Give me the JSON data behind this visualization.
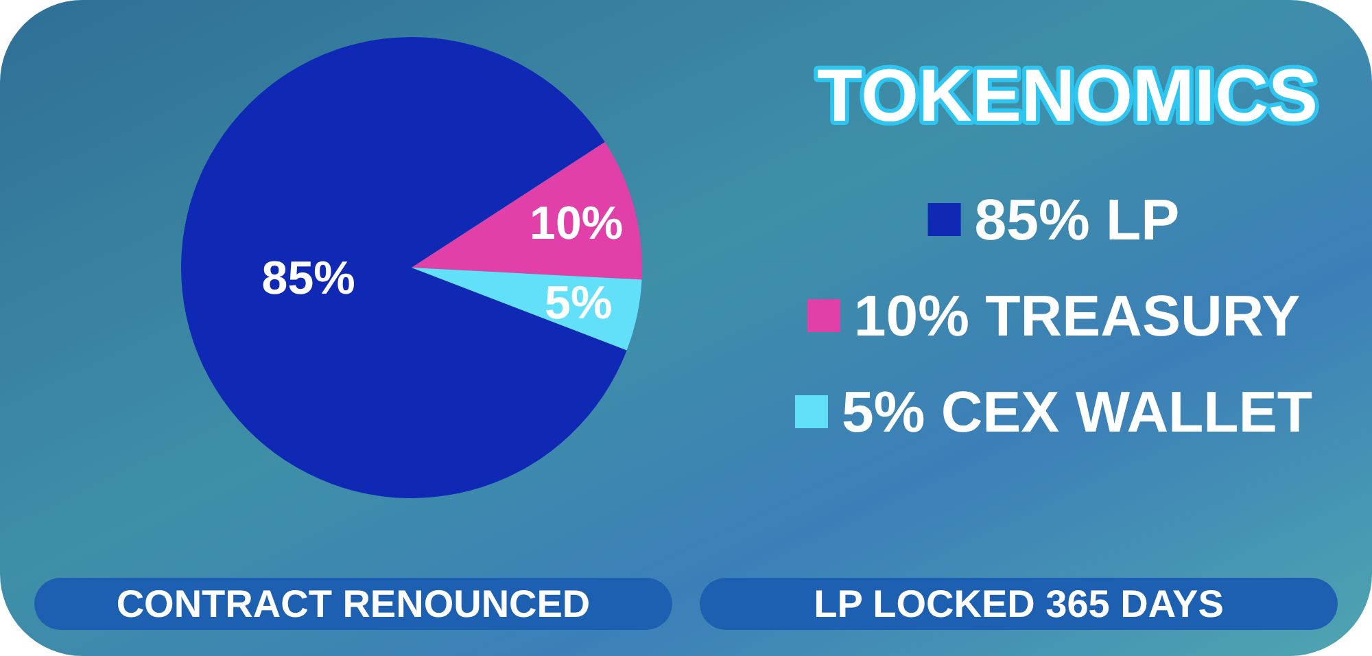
{
  "chart_data": {
    "type": "pie",
    "title": "TOKENOMICS",
    "categories": [
      "LP",
      "TREASURY",
      "CEX WALLET"
    ],
    "values": [
      85,
      10,
      5
    ],
    "colors": [
      "#1029b5",
      "#e040a8",
      "#62e0fa"
    ],
    "value_labels": [
      "85%",
      "10%",
      "5%"
    ],
    "legend": "right",
    "annotations": [
      "CONTRACT RENOUNCED",
      "LP LOCKED 365 DAYS"
    ]
  }
}
